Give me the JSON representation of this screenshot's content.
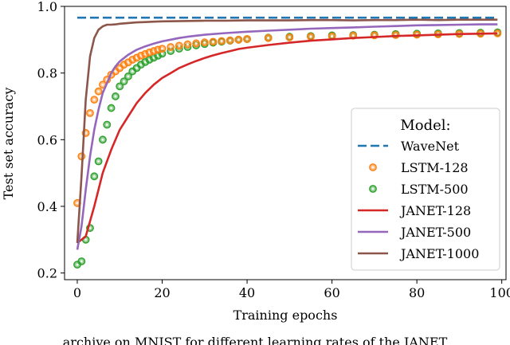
{
  "chart_data": {
    "type": "line",
    "xlabel": "Training epochs",
    "ylabel": "Test set accuracy",
    "xlim": [
      -3,
      101
    ],
    "ylim": [
      0.18,
      1.0
    ],
    "xticks": [
      0,
      20,
      40,
      60,
      80,
      100
    ],
    "yticks": [
      0.2,
      0.4,
      0.6,
      0.8,
      1.0
    ],
    "grid": false,
    "legend": {
      "title": "Model:",
      "placement": "center-right",
      "entries": [
        "WaveNet",
        "LSTM-128",
        "LSTM-500",
        "JANET-128",
        "JANET-500",
        "JANET-1000"
      ]
    },
    "series": [
      {
        "name": "WaveNet",
        "style": "dashed-line",
        "color": "#1f77b4",
        "x": [
          0,
          99
        ],
        "y": [
          0.966,
          0.966
        ]
      },
      {
        "name": "LSTM-128",
        "style": "markers",
        "color": "#ff7f0e",
        "x": [
          0,
          1,
          2,
          3,
          4,
          5,
          6,
          7,
          8,
          9,
          10,
          11,
          12,
          13,
          14,
          15,
          16,
          17,
          18,
          19,
          20,
          22,
          24,
          26,
          28,
          30,
          32,
          34,
          36,
          38,
          40,
          45,
          50,
          55,
          60,
          65,
          70,
          75,
          80,
          85,
          90,
          95,
          99
        ],
        "y": [
          0.41,
          0.55,
          0.62,
          0.68,
          0.72,
          0.745,
          0.765,
          0.78,
          0.795,
          0.805,
          0.815,
          0.825,
          0.832,
          0.84,
          0.846,
          0.852,
          0.857,
          0.862,
          0.866,
          0.87,
          0.873,
          0.878,
          0.882,
          0.886,
          0.889,
          0.892,
          0.894,
          0.896,
          0.898,
          0.9,
          0.902,
          0.905,
          0.907,
          0.909,
          0.91,
          0.912,
          0.913,
          0.914,
          0.915,
          0.916,
          0.917,
          0.918,
          0.919
        ]
      },
      {
        "name": "LSTM-500",
        "style": "markers",
        "color": "#2ca02c",
        "x": [
          0,
          1,
          2,
          3,
          4,
          5,
          6,
          7,
          8,
          9,
          10,
          11,
          12,
          13,
          14,
          15,
          16,
          17,
          18,
          19,
          20,
          22,
          24,
          26,
          28,
          30,
          32,
          34,
          36,
          38,
          40,
          45,
          50,
          55,
          60,
          65,
          70,
          75,
          80,
          85,
          90,
          95,
          99
        ],
        "y": [
          0.225,
          0.235,
          0.3,
          0.335,
          0.49,
          0.535,
          0.6,
          0.645,
          0.695,
          0.73,
          0.76,
          0.775,
          0.79,
          0.805,
          0.815,
          0.825,
          0.833,
          0.84,
          0.846,
          0.852,
          0.858,
          0.866,
          0.873,
          0.878,
          0.883,
          0.887,
          0.891,
          0.894,
          0.897,
          0.9,
          0.902,
          0.906,
          0.909,
          0.911,
          0.913,
          0.914,
          0.915,
          0.917,
          0.918,
          0.919,
          0.92,
          0.921,
          0.922
        ]
      },
      {
        "name": "JANET-128",
        "style": "line",
        "color": "#d62728",
        "x": [
          0,
          2,
          4,
          6,
          8,
          10,
          12,
          14,
          16,
          18,
          20,
          22,
          24,
          26,
          28,
          30,
          32,
          34,
          36,
          38,
          40,
          45,
          50,
          55,
          60,
          65,
          70,
          75,
          80,
          85,
          90,
          95,
          99
        ],
        "y": [
          0.29,
          0.31,
          0.4,
          0.5,
          0.57,
          0.63,
          0.67,
          0.71,
          0.74,
          0.765,
          0.785,
          0.8,
          0.815,
          0.826,
          0.836,
          0.845,
          0.853,
          0.86,
          0.866,
          0.872,
          0.876,
          0.884,
          0.891,
          0.897,
          0.901,
          0.905,
          0.908,
          0.911,
          0.913,
          0.915,
          0.917,
          0.918,
          0.919
        ]
      },
      {
        "name": "JANET-500",
        "style": "line",
        "color": "#9467bd",
        "x": [
          0,
          1,
          2,
          3,
          4,
          5,
          6,
          7,
          8,
          9,
          10,
          12,
          14,
          16,
          18,
          20,
          22,
          24,
          26,
          28,
          30,
          35,
          40,
          45,
          50,
          55,
          60,
          65,
          70,
          75,
          80,
          85,
          90,
          95,
          99
        ],
        "y": [
          0.27,
          0.34,
          0.45,
          0.55,
          0.63,
          0.69,
          0.74,
          0.77,
          0.8,
          0.82,
          0.835,
          0.855,
          0.87,
          0.88,
          0.888,
          0.895,
          0.9,
          0.905,
          0.909,
          0.912,
          0.915,
          0.92,
          0.924,
          0.927,
          0.93,
          0.933,
          0.935,
          0.937,
          0.939,
          0.941,
          0.943,
          0.944,
          0.945,
          0.946,
          0.946
        ]
      },
      {
        "name": "JANET-1000",
        "style": "line",
        "color": "#8c564b",
        "x": [
          0,
          1,
          2,
          3,
          4,
          5,
          6,
          7,
          8,
          9,
          10,
          12,
          14,
          16,
          18,
          20,
          25,
          30,
          35,
          40,
          45,
          50,
          55,
          60,
          65,
          70,
          75,
          80,
          85,
          90,
          95,
          99
        ],
        "y": [
          0.29,
          0.49,
          0.72,
          0.85,
          0.905,
          0.93,
          0.94,
          0.945,
          0.945,
          0.946,
          0.948,
          0.95,
          0.952,
          0.953,
          0.954,
          0.955,
          0.956,
          0.957,
          0.957,
          0.958,
          0.958,
          0.958,
          0.959,
          0.959,
          0.958,
          0.959,
          0.959,
          0.96,
          0.959,
          0.96,
          0.96,
          0.96
        ]
      }
    ]
  },
  "caption_fragment": "archive on MNIST for different learning rates of the JANET"
}
